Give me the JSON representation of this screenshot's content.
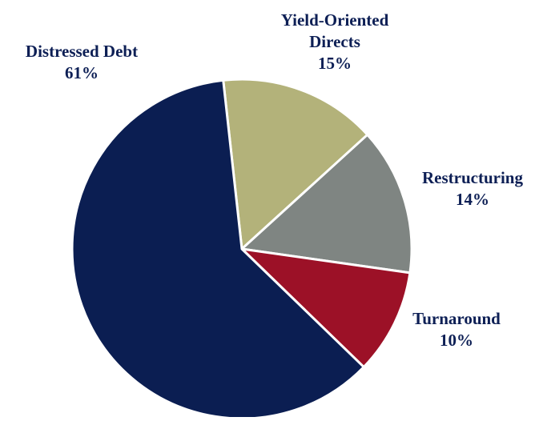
{
  "chart_data": {
    "type": "pie",
    "slices": [
      {
        "label": "Distressed Debt",
        "name_lines": [
          "Distressed Debt"
        ],
        "value": 61,
        "display": "61%",
        "color": "#0b1e52"
      },
      {
        "label": "Yield-Oriented Directs",
        "name_lines": [
          "Yield-Oriented",
          "Directs"
        ],
        "value": 15,
        "display": "15%",
        "color": "#b3b27a"
      },
      {
        "label": "Restructuring",
        "name_lines": [
          "Restructuring"
        ],
        "value": 14,
        "display": "14%",
        "color": "#7f8582"
      },
      {
        "label": "Turnaround",
        "name_lines": [
          "Turnaround"
        ],
        "value": 10,
        "display": "10%",
        "color": "#9c1127"
      }
    ],
    "label_color": "#0d1f55",
    "slice_border_color": "#ffffff"
  }
}
